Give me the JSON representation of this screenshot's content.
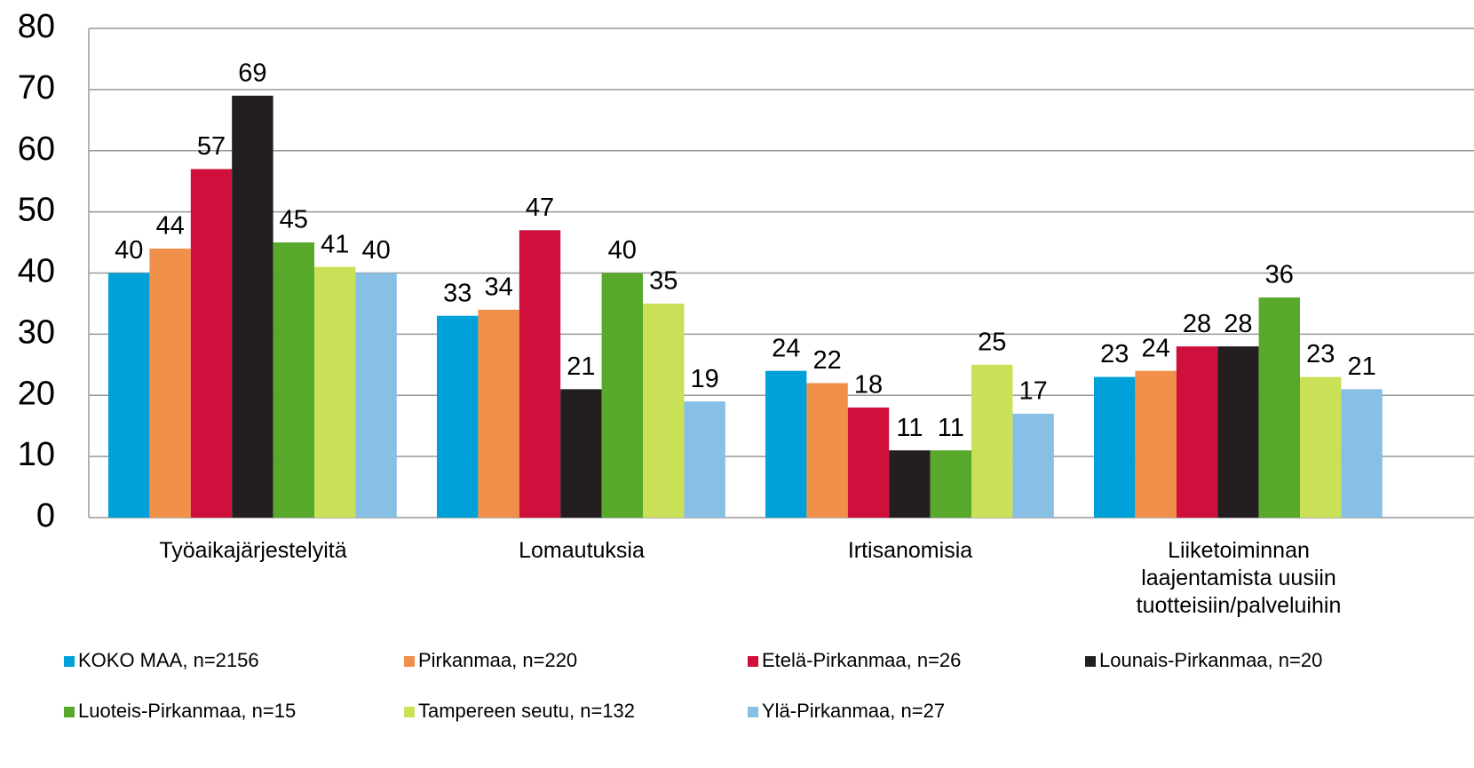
{
  "chart_data": {
    "type": "bar",
    "categories": [
      "Työaikajärjestelyitä",
      "Lomautuksia",
      "Irtisanomisia",
      "Liiketoiminnan laajentamista uusiin tuotteisiin/palveluihin"
    ],
    "series": [
      {
        "name": "KOKO MAA, n=2156",
        "color": "#00a0d8",
        "values": [
          40,
          33,
          24,
          23
        ]
      },
      {
        "name": "Pirkanmaa, n=220",
        "color": "#f0904a",
        "values": [
          44,
          34,
          22,
          24
        ]
      },
      {
        "name": "Etelä-Pirkanmaa, n=26",
        "color": "#d0103c",
        "values": [
          57,
          47,
          18,
          28
        ]
      },
      {
        "name": "Lounais-Pirkanmaa, n=20",
        "color": "#231f20",
        "values": [
          69,
          21,
          11,
          28
        ]
      },
      {
        "name": "Luoteis-Pirkanmaa, n=15",
        "color": "#58a82c",
        "values": [
          45,
          40,
          11,
          36
        ]
      },
      {
        "name": "Tampereen seutu, n=132",
        "color": "#c8e156",
        "values": [
          41,
          35,
          25,
          23
        ]
      },
      {
        "name": "Ylä-Pirkanmaa, n=27",
        "color": "#88bfe4",
        "values": [
          40,
          19,
          17,
          21
        ]
      }
    ],
    "ylim": [
      0,
      80
    ],
    "yticks": [
      0,
      10,
      20,
      30,
      40,
      50,
      60,
      70,
      80
    ],
    "grid": true,
    "legend": "bottom"
  }
}
